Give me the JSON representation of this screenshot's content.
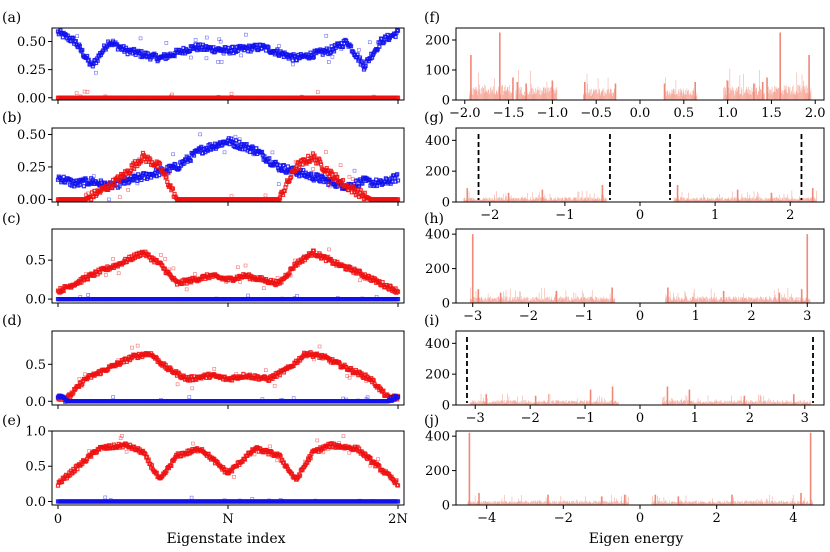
{
  "chart_data": [
    {
      "panel": "(a)",
      "type": "scatter",
      "ylim": [
        -0.02,
        0.62
      ],
      "yticks": [
        "0.00",
        "0.25",
        "0.50"
      ],
      "ytick_values": [
        0,
        0.25,
        0.5
      ],
      "series": [
        {
          "name": "blue",
          "color": "#1010ee",
          "x": [
            0,
            0.05,
            0.1,
            0.15,
            0.2,
            0.3,
            0.4,
            0.5,
            0.6,
            0.7,
            0.8,
            0.85,
            0.9,
            0.95,
            1.0
          ],
          "y": [
            0.58,
            0.5,
            0.28,
            0.5,
            0.42,
            0.35,
            0.45,
            0.42,
            0.45,
            0.35,
            0.42,
            0.5,
            0.28,
            0.5,
            0.58
          ]
        },
        {
          "name": "red",
          "color": "#ee1010",
          "x": [
            0,
            0.25,
            0.5,
            0.75,
            1.0
          ],
          "y": [
            0,
            0,
            0,
            0,
            0
          ]
        }
      ],
      "xlim": [
        0,
        1
      ]
    },
    {
      "panel": "(b)",
      "type": "scatter",
      "ylim": [
        -0.02,
        0.55
      ],
      "yticks": [
        "0.00",
        "0.25",
        "0.50"
      ],
      "ytick_values": [
        0,
        0.25,
        0.5
      ],
      "series": [
        {
          "name": "blue",
          "color": "#1010ee",
          "x": [
            0,
            0.05,
            0.1,
            0.15,
            0.35,
            0.42,
            0.5,
            0.58,
            0.65,
            0.85,
            0.9,
            0.95,
            1.0
          ],
          "y": [
            0.17,
            0.12,
            0.14,
            0.1,
            0.25,
            0.38,
            0.45,
            0.38,
            0.25,
            0.1,
            0.14,
            0.12,
            0.17
          ]
        },
        {
          "name": "red",
          "color": "#ee1010",
          "x": [
            0,
            0.08,
            0.15,
            0.2,
            0.25,
            0.3,
            0.35,
            0.65,
            0.7,
            0.75,
            0.8,
            0.85,
            0.92,
            1.0
          ],
          "y": [
            0,
            0,
            0.1,
            0.2,
            0.33,
            0.25,
            0,
            0,
            0.25,
            0.33,
            0.2,
            0.1,
            0,
            0
          ]
        }
      ],
      "xlim": [
        0,
        1
      ]
    },
    {
      "panel": "(c)",
      "type": "scatter",
      "ylim": [
        -0.05,
        0.9
      ],
      "yticks": [
        "0.0",
        "0.5"
      ],
      "ytick_values": [
        0,
        0.5
      ],
      "series": [
        {
          "name": "red",
          "color": "#ee1010",
          "x": [
            0,
            0.05,
            0.12,
            0.18,
            0.25,
            0.3,
            0.35,
            0.45,
            0.5,
            0.55,
            0.65,
            0.7,
            0.75,
            0.82,
            0.88,
            0.95,
            1.0
          ],
          "y": [
            0.1,
            0.2,
            0.35,
            0.45,
            0.6,
            0.45,
            0.2,
            0.3,
            0.25,
            0.3,
            0.2,
            0.45,
            0.6,
            0.45,
            0.35,
            0.2,
            0.1
          ]
        },
        {
          "name": "blue",
          "color": "#1010ee",
          "x": [
            0,
            0.5,
            1.0
          ],
          "y": [
            0,
            0,
            0
          ]
        }
      ],
      "xlim": [
        0,
        1
      ]
    },
    {
      "panel": "(d)",
      "type": "scatter",
      "ylim": [
        -0.05,
        0.95
      ],
      "yticks": [
        "0.0",
        "0.5"
      ],
      "ytick_values": [
        0,
        0.5
      ],
      "series": [
        {
          "name": "red",
          "color": "#ee1010",
          "x": [
            0.03,
            0.08,
            0.15,
            0.22,
            0.27,
            0.32,
            0.38,
            0.45,
            0.5,
            0.55,
            0.62,
            0.68,
            0.73,
            0.78,
            0.85,
            0.92,
            0.97
          ],
          "y": [
            0.05,
            0.3,
            0.45,
            0.6,
            0.65,
            0.45,
            0.3,
            0.35,
            0.3,
            0.35,
            0.3,
            0.45,
            0.65,
            0.6,
            0.45,
            0.3,
            0.05
          ]
        },
        {
          "name": "blue",
          "color": "#1010ee",
          "x": [
            0,
            0.03,
            0.5,
            0.97,
            1.0
          ],
          "y": [
            0.08,
            0,
            0,
            0,
            0.08
          ]
        }
      ],
      "xlim": [
        0,
        1
      ]
    },
    {
      "panel": "(e)",
      "type": "scatter",
      "ylim": [
        -0.05,
        1.0
      ],
      "yticks": [
        "0.0",
        "0.5",
        "1.0"
      ],
      "ytick_values": [
        0,
        0.5,
        1.0
      ],
      "series": [
        {
          "name": "red",
          "color": "#ee1010",
          "x": [
            0,
            0.06,
            0.12,
            0.2,
            0.25,
            0.3,
            0.35,
            0.42,
            0.5,
            0.58,
            0.65,
            0.7,
            0.75,
            0.8,
            0.88,
            0.94,
            1.0
          ],
          "y": [
            0.25,
            0.5,
            0.75,
            0.8,
            0.7,
            0.3,
            0.65,
            0.75,
            0.4,
            0.75,
            0.65,
            0.3,
            0.7,
            0.8,
            0.75,
            0.5,
            0.25
          ]
        },
        {
          "name": "blue",
          "color": "#1010ee",
          "x": [
            0,
            0.5,
            1.0
          ],
          "y": [
            0,
            0,
            0
          ]
        }
      ],
      "xlim": [
        0,
        1
      ]
    },
    {
      "panel": "(f)",
      "type": "bar",
      "xlim": [
        -2.1,
        2.1
      ],
      "ylim": [
        0,
        240
      ],
      "xticks": [
        "−2.0",
        "−1.5",
        "−1.0",
        "−0.5",
        "0.0",
        "0.5",
        "1.0",
        "1.5",
        "2.0"
      ],
      "xtick_values": [
        -2.0,
        -1.5,
        -1.0,
        -0.5,
        0.0,
        0.5,
        1.0,
        1.5,
        2.0
      ],
      "yticks": [
        "0",
        "100",
        "200"
      ],
      "ytick_values": [
        0,
        100,
        200
      ],
      "bars": [
        {
          "x0": -1.95,
          "x1": -1.45,
          "h": 40,
          "peaks": [
            {
              "x": -1.93,
              "h": 150
            },
            {
              "x": -1.6,
              "h": 225
            },
            {
              "x": -1.45,
              "h": 75
            }
          ]
        },
        {
          "x0": -1.42,
          "x1": -0.95,
          "h": 35,
          "peaks": [
            {
              "x": -1.4,
              "h": 60
            },
            {
              "x": -1.3,
              "h": 55
            },
            {
              "x": -1.0,
              "h": 65
            }
          ]
        },
        {
          "x0": -0.65,
          "x1": -0.28,
          "h": 30,
          "peaks": [
            {
              "x": -0.63,
              "h": 60
            },
            {
              "x": -0.28,
              "h": 55
            }
          ]
        },
        {
          "x0": 0.28,
          "x1": 0.65,
          "h": 30,
          "peaks": [
            {
              "x": 0.28,
              "h": 55
            },
            {
              "x": 0.63,
              "h": 60
            }
          ]
        },
        {
          "x0": 0.95,
          "x1": 1.42,
          "h": 35,
          "peaks": [
            {
              "x": 1.0,
              "h": 65
            },
            {
              "x": 1.3,
              "h": 55
            },
            {
              "x": 1.4,
              "h": 60
            }
          ]
        },
        {
          "x0": 1.45,
          "x1": 1.95,
          "h": 40,
          "peaks": [
            {
              "x": 1.45,
              "h": 75
            },
            {
              "x": 1.6,
              "h": 225
            },
            {
              "x": 1.93,
              "h": 150
            }
          ]
        }
      ]
    },
    {
      "panel": "(g)",
      "type": "bar",
      "xlim": [
        -2.45,
        2.45
      ],
      "ylim": [
        0,
        480
      ],
      "xticks": [
        "−2",
        "−1",
        "0",
        "1",
        "2"
      ],
      "xtick_values": [
        -2,
        -1,
        0,
        1,
        2
      ],
      "yticks": [
        "0",
        "200",
        "400"
      ],
      "ytick_values": [
        0,
        200,
        400
      ],
      "vlines": [
        -2.15,
        -0.4,
        0.4,
        2.15
      ],
      "bars": [
        {
          "x0": -2.35,
          "x1": -0.45,
          "h": 25,
          "peaks": [
            {
              "x": -2.3,
              "h": 90
            },
            {
              "x": -1.75,
              "h": 60
            },
            {
              "x": -1.3,
              "h": 80
            },
            {
              "x": -0.5,
              "h": 110
            }
          ]
        },
        {
          "x0": 0.45,
          "x1": 2.35,
          "h": 25,
          "peaks": [
            {
              "x": 0.5,
              "h": 110
            },
            {
              "x": 1.3,
              "h": 80
            },
            {
              "x": 1.75,
              "h": 60
            },
            {
              "x": 2.3,
              "h": 90
            }
          ]
        }
      ]
    },
    {
      "panel": "(h)",
      "type": "bar",
      "xlim": [
        -3.3,
        3.3
      ],
      "ylim": [
        0,
        430
      ],
      "xticks": [
        "−3",
        "−2",
        "−1",
        "0",
        "1",
        "2",
        "3"
      ],
      "xtick_values": [
        -3,
        -2,
        -1,
        0,
        1,
        2,
        3
      ],
      "yticks": [
        "0",
        "200",
        "400"
      ],
      "ytick_values": [
        0,
        200,
        400
      ],
      "bars": [
        {
          "x0": -3.05,
          "x1": -0.45,
          "h": 30,
          "peaks": [
            {
              "x": -3.0,
              "h": 400
            },
            {
              "x": -2.9,
              "h": 80
            },
            {
              "x": -2.5,
              "h": 60
            },
            {
              "x": -1.5,
              "h": 70
            },
            {
              "x": -0.5,
              "h": 90
            }
          ]
        },
        {
          "x0": 0.45,
          "x1": 3.05,
          "h": 30,
          "peaks": [
            {
              "x": 0.5,
              "h": 90
            },
            {
              "x": 1.5,
              "h": 70
            },
            {
              "x": 2.5,
              "h": 60
            },
            {
              "x": 2.9,
              "h": 80
            },
            {
              "x": 3.0,
              "h": 400
            }
          ]
        }
      ]
    },
    {
      "panel": "(i)",
      "type": "bar",
      "xlim": [
        -3.35,
        3.35
      ],
      "ylim": [
        0,
        480
      ],
      "xticks": [
        "−3",
        "−2",
        "−1",
        "0",
        "1",
        "2",
        "3"
      ],
      "xtick_values": [
        -3,
        -2,
        -1,
        0,
        1,
        2,
        3
      ],
      "yticks": [
        "0",
        "200",
        "400"
      ],
      "ytick_values": [
        0,
        200,
        400
      ],
      "vlines": [
        -3.15,
        3.15
      ],
      "bars": [
        {
          "x0": -3.1,
          "x1": -0.4,
          "h": 25,
          "peaks": [
            {
              "x": -2.8,
              "h": 70
            },
            {
              "x": -1.9,
              "h": 60
            },
            {
              "x": -0.9,
              "h": 100
            },
            {
              "x": -0.5,
              "h": 120
            }
          ]
        },
        {
          "x0": 0.4,
          "x1": 3.1,
          "h": 25,
          "peaks": [
            {
              "x": 0.5,
              "h": 120
            },
            {
              "x": 0.9,
              "h": 100
            },
            {
              "x": 1.9,
              "h": 60
            },
            {
              "x": 2.8,
              "h": 70
            }
          ]
        }
      ]
    },
    {
      "panel": "(j)",
      "type": "bar",
      "xlim": [
        -4.8,
        4.8
      ],
      "ylim": [
        0,
        430
      ],
      "xticks": [
        "−4",
        "−2",
        "0",
        "2",
        "4"
      ],
      "xtick_values": [
        -4,
        -2,
        0,
        2,
        4
      ],
      "yticks": [
        "0",
        "200",
        "400"
      ],
      "ytick_values": [
        0,
        200,
        400
      ],
      "bars": [
        {
          "x0": -4.5,
          "x1": -0.3,
          "h": 20,
          "peaks": [
            {
              "x": -4.45,
              "h": 420
            },
            {
              "x": -4.2,
              "h": 70
            },
            {
              "x": -2.4,
              "h": 60
            },
            {
              "x": -1.0,
              "h": 50
            },
            {
              "x": -0.4,
              "h": 60
            }
          ]
        },
        {
          "x0": 0.3,
          "x1": 4.5,
          "h": 20,
          "peaks": [
            {
              "x": 0.4,
              "h": 60
            },
            {
              "x": 1.0,
              "h": 50
            },
            {
              "x": 2.4,
              "h": 60
            },
            {
              "x": 4.2,
              "h": 70
            },
            {
              "x": 4.45,
              "h": 420
            }
          ]
        }
      ]
    }
  ],
  "left_xaxis": {
    "ticks": [
      "0",
      "N",
      "2N"
    ],
    "tick_values": [
      0,
      0.5,
      1.0
    ],
    "label": "Eigenstate index"
  },
  "right_xaxis": {
    "label": "Eigen energy"
  }
}
